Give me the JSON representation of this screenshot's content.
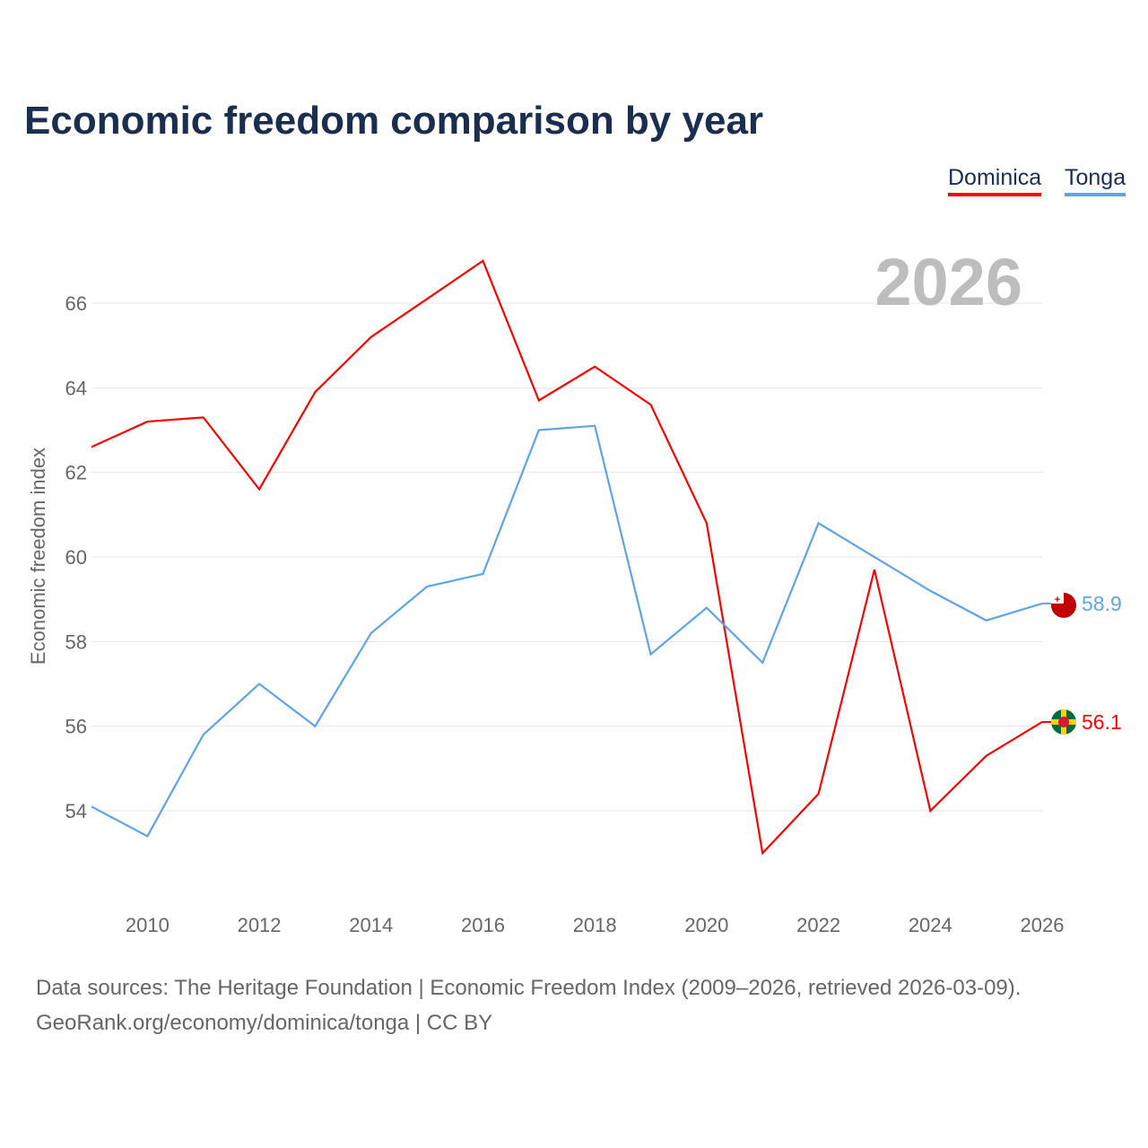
{
  "title": "Economic freedom comparison by year",
  "legend": [
    {
      "label": "Dominica",
      "color": "#ff0000"
    },
    {
      "label": "Tonga",
      "color": "#5fa4e8"
    }
  ],
  "chart_data": {
    "type": "line",
    "title": "Economic freedom comparison by year",
    "xlabel": "",
    "ylabel": "Economic freedom index",
    "x": [
      2009,
      2010,
      2011,
      2012,
      2013,
      2014,
      2015,
      2016,
      2017,
      2018,
      2019,
      2020,
      2021,
      2022,
      2023,
      2024,
      2025,
      2026
    ],
    "xticks": [
      "2010",
      "2012",
      "2014",
      "2016",
      "2018",
      "2020",
      "2022",
      "2024",
      "2026"
    ],
    "yticks": [
      "54",
      "56",
      "58",
      "60",
      "62",
      "64",
      "66"
    ],
    "xlim": [
      2009,
      2026
    ],
    "ylim": [
      52.3,
      67.5
    ],
    "grid": true,
    "legend_position": "top-right",
    "year_label": "2026",
    "series": [
      {
        "name": "Dominica",
        "color": "#ff0000",
        "end_label": "56.1",
        "values": [
          62.6,
          63.2,
          63.3,
          61.6,
          63.9,
          65.2,
          66.1,
          67.0,
          63.7,
          64.5,
          63.6,
          60.8,
          53.0,
          54.4,
          59.7,
          54.0,
          55.3,
          56.1
        ]
      },
      {
        "name": "Tonga",
        "color": "#5fa4e8",
        "end_label": "58.9",
        "values": [
          54.1,
          53.4,
          55.8,
          57.0,
          56.0,
          58.2,
          59.3,
          59.6,
          63.0,
          63.1,
          57.7,
          58.8,
          57.5,
          60.8,
          60.0,
          59.2,
          58.5,
          58.9
        ]
      }
    ]
  },
  "source_line1": "Data sources: The Heritage Foundation | Economic Freedom Index (2009–2026, retrieved 2026-03-09).",
  "source_line2": "GeoRank.org/economy/dominica/tonga | CC BY"
}
